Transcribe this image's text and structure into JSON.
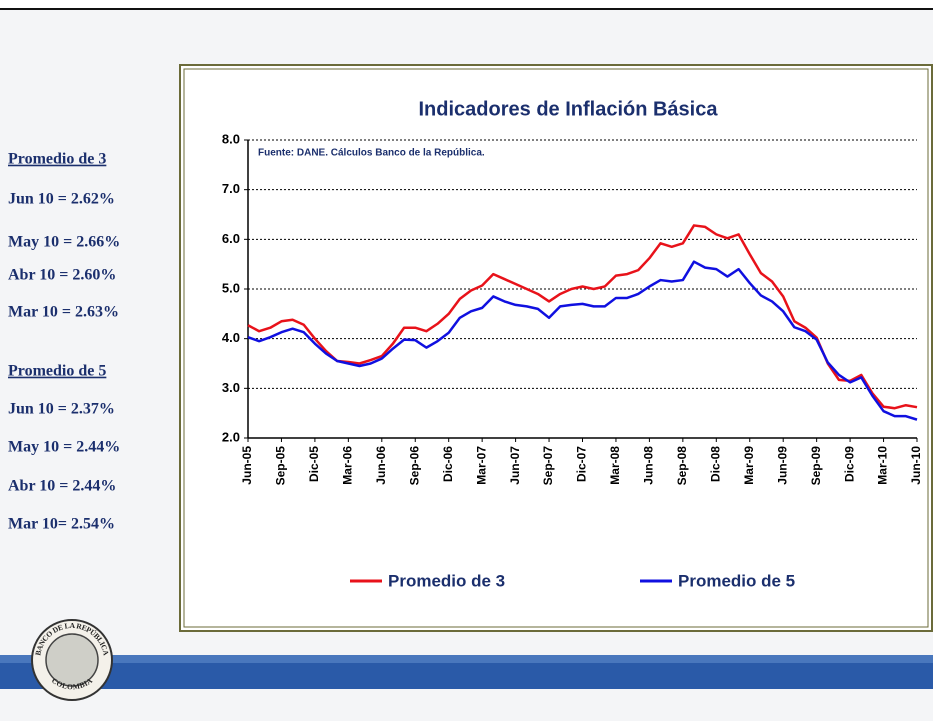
{
  "sidebar": [
    {
      "heading": "Promedio de 3",
      "items": [
        "Jun 10 = 2.62%",
        "May 10 = 2.66%",
        "Abr 10 = 2.60%",
        "Mar 10 = 2.63%"
      ]
    },
    {
      "heading": "Promedio de 5",
      "items": [
        "Jun 10 = 2.37%",
        "May 10 = 2.44%",
        "Abr 10 = 2.44%",
        "Mar 10= 2.54%"
      ]
    }
  ],
  "seal": {
    "top": "BANCO DE LA REPÚBLICA",
    "bottom": "COLOMBIA"
  },
  "chart_data": {
    "type": "line",
    "title": "Indicadores de Inflación Básica",
    "note": "Fuente: DANE. Cálculos Banco de la República.",
    "categories": [
      "Jun-05",
      null,
      null,
      "Sep-05",
      null,
      null,
      "Dic-05",
      null,
      null,
      "Mar-06",
      null,
      null,
      "Jun-06",
      null,
      null,
      "Sep-06",
      null,
      null,
      "Dic-06",
      null,
      null,
      "Mar-07",
      null,
      null,
      "Jun-07",
      null,
      null,
      "Sep-07",
      null,
      null,
      "Dic-07",
      null,
      null,
      "Mar-08",
      null,
      null,
      "Jun-08",
      null,
      null,
      "Sep-08",
      null,
      null,
      "Dic-08",
      null,
      null,
      "Mar-09",
      null,
      null,
      "Jun-09",
      null,
      null,
      "Sep-09",
      null,
      null,
      "Dic-09",
      null,
      null,
      "Mar-10",
      null,
      null,
      "Jun-10"
    ],
    "series": [
      {
        "name": "Promedio de 3",
        "color": "#e8121a",
        "values": [
          4.27,
          4.15,
          4.22,
          4.35,
          4.38,
          4.28,
          4.0,
          3.75,
          3.55,
          3.53,
          3.5,
          3.57,
          3.65,
          3.9,
          4.22,
          4.22,
          4.15,
          4.3,
          4.5,
          4.8,
          4.97,
          5.07,
          5.3,
          5.2,
          5.1,
          5.0,
          4.9,
          4.75,
          4.9,
          5.0,
          5.05,
          5.0,
          5.05,
          5.27,
          5.3,
          5.38,
          5.62,
          5.92,
          5.85,
          5.92,
          6.28,
          6.25,
          6.1,
          6.02,
          6.1,
          5.7,
          5.32,
          5.15,
          4.85,
          4.35,
          4.22,
          4.02,
          3.5,
          3.17,
          3.15,
          3.27,
          2.9,
          2.63,
          2.6,
          2.66,
          2.62
        ]
      },
      {
        "name": "Promedio de 5",
        "color": "#1010e0",
        "values": [
          4.03,
          3.95,
          4.03,
          4.13,
          4.2,
          4.13,
          3.9,
          3.7,
          3.55,
          3.5,
          3.45,
          3.5,
          3.6,
          3.8,
          3.98,
          3.97,
          3.82,
          3.95,
          4.12,
          4.42,
          4.55,
          4.62,
          4.85,
          4.75,
          4.68,
          4.65,
          4.6,
          4.42,
          4.65,
          4.68,
          4.7,
          4.65,
          4.65,
          4.82,
          4.82,
          4.9,
          5.05,
          5.18,
          5.15,
          5.18,
          5.55,
          5.43,
          5.4,
          5.25,
          5.4,
          5.12,
          4.87,
          4.75,
          4.55,
          4.23,
          4.15,
          3.98,
          3.52,
          3.27,
          3.12,
          3.22,
          2.85,
          2.54,
          2.44,
          2.44,
          2.37
        ]
      }
    ],
    "ylim": [
      2,
      8
    ],
    "yticks": [
      {
        "value": 2,
        "label": "2.0"
      },
      {
        "value": 3,
        "label": "3.0"
      },
      {
        "value": 4,
        "label": "4.0"
      },
      {
        "value": 5,
        "label": "5.0"
      },
      {
        "value": 6,
        "label": "6.0"
      },
      {
        "value": 7,
        "label": "7.0"
      },
      {
        "value": 8,
        "label": "8.0"
      }
    ],
    "grid": true,
    "legend": "bottom"
  }
}
